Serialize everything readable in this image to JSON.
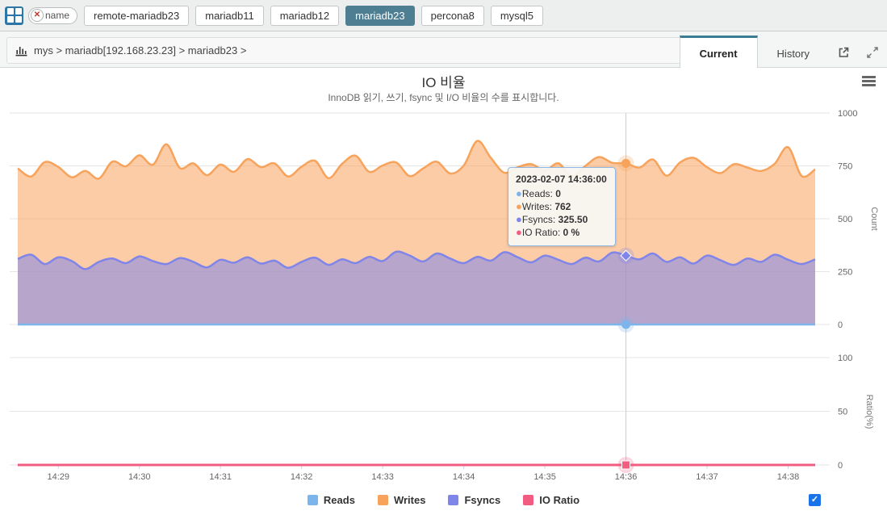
{
  "topbar": {
    "filter_chip": {
      "label": "name",
      "close_glyph": "✕"
    },
    "server_tabs": [
      {
        "label": "remote-mariadb23",
        "active": false
      },
      {
        "label": "mariadb11",
        "active": false
      },
      {
        "label": "mariadb12",
        "active": false
      },
      {
        "label": "mariadb23",
        "active": true
      },
      {
        "label": "percona8",
        "active": false
      },
      {
        "label": "mysql5",
        "active": false
      }
    ],
    "active_tab_color": "#4d7e91"
  },
  "subheader": {
    "breadcrumb": "mys > mariadb[192.168.23.23] > mariadb23 >",
    "view_tabs": [
      {
        "label": "Current",
        "active": true
      },
      {
        "label": "History",
        "active": false
      }
    ],
    "active_tab_accent": "#3b7d92"
  },
  "tooltip": {
    "title": "2023-02-07 14:36:00",
    "rows": [
      {
        "label": "Reads",
        "value": "0",
        "color": "#7cb5ec"
      },
      {
        "label": "Writes",
        "value": "762",
        "color": "#f7a35c"
      },
      {
        "label": "Fsyncs",
        "value": "325.50",
        "color": "#8085e9"
      },
      {
        "label": "IO Ratio",
        "value": "0 %",
        "color": "#f15c80"
      }
    ]
  },
  "legend": {
    "items": [
      {
        "label": "Reads",
        "color": "#7cb5ec"
      },
      {
        "label": "Writes",
        "color": "#f7a35c"
      },
      {
        "label": "Fsyncs",
        "color": "#8085e9"
      },
      {
        "label": "IO Ratio",
        "color": "#f15c80"
      }
    ],
    "checkbox_checked": true,
    "check_glyph": "✓"
  },
  "chart_data": {
    "type": "area",
    "title": "IO 비율",
    "subtitle": "InnoDB 읽기, 쓰기, fsync 및 I/O 비율의 수를 표시합니다.",
    "x_start": "14:28:30",
    "x_step_seconds": 10,
    "x_labels": [
      "14:29",
      "14:30",
      "14:31",
      "14:32",
      "14:33",
      "14:34",
      "14:35",
      "14:36",
      "14:37",
      "14:38"
    ],
    "grid": true,
    "legend_position": "bottom-center",
    "panes": [
      {
        "ylabel": "Count",
        "ylim": [
          0,
          1000
        ],
        "yticks": [
          0,
          250,
          500,
          750,
          1000
        ]
      },
      {
        "ylabel": "Ratio(%)",
        "ylim": [
          0,
          100
        ],
        "yticks": [
          0,
          50,
          100
        ]
      }
    ],
    "crosshair_index": 45,
    "selected_point": {
      "time": "2023-02-07 14:36:00",
      "reads": 0,
      "writes": 762,
      "fsyncs": 325.5,
      "io_ratio_pct": 0
    },
    "series": [
      {
        "name": "Reads",
        "color": "#7cb5ec",
        "pane": 0,
        "marker": "circle",
        "values": [
          0,
          0,
          0,
          0,
          0,
          0,
          0,
          0,
          0,
          0,
          0,
          0,
          0,
          0,
          0,
          0,
          0,
          0,
          0,
          0,
          0,
          0,
          0,
          0,
          0,
          0,
          0,
          0,
          0,
          0,
          0,
          0,
          0,
          0,
          0,
          0,
          0,
          0,
          0,
          0,
          0,
          0,
          0,
          0,
          0,
          0,
          0,
          0,
          0,
          0,
          0,
          0,
          0,
          0,
          0,
          0,
          0,
          0,
          0,
          0
        ]
      },
      {
        "name": "Writes",
        "color": "#f7a35c",
        "pane": 0,
        "marker": "circle",
        "values": [
          738,
          700,
          768,
          745,
          696,
          726,
          690,
          770,
          748,
          800,
          756,
          852,
          740,
          762,
          706,
          756,
          722,
          782,
          744,
          762,
          700,
          746,
          774,
          692,
          760,
          798,
          722,
          752,
          766,
          702,
          738,
          770,
          714,
          752,
          868,
          788,
          718,
          744,
          758,
          728,
          762,
          700,
          750,
          792,
          764,
          762,
          742,
          780,
          704,
          766,
          788,
          744,
          716,
          758,
          742,
          726,
          760,
          838,
          702,
          734
        ]
      },
      {
        "name": "Fsyncs",
        "color": "#8085e9",
        "pane": 0,
        "marker": "diamond",
        "values": [
          310,
          330,
          286,
          318,
          300,
          262,
          296,
          312,
          290,
          322,
          300,
          286,
          314,
          296,
          270,
          306,
          292,
          318,
          288,
          302,
          268,
          296,
          316,
          282,
          308,
          290,
          320,
          300,
          344,
          326,
          298,
          336,
          312,
          290,
          320,
          302,
          342,
          318,
          294,
          326,
          306,
          286,
          316,
          298,
          340,
          325.5,
          308,
          336,
          296,
          318,
          288,
          326,
          304,
          282,
          312,
          296,
          330,
          306,
          286,
          308
        ]
      },
      {
        "name": "IO Ratio",
        "color": "#f15c80",
        "pane": 1,
        "marker": "square",
        "values": [
          0,
          0,
          0,
          0,
          0,
          0,
          0,
          0,
          0,
          0,
          0,
          0,
          0,
          0,
          0,
          0,
          0,
          0,
          0,
          0,
          0,
          0,
          0,
          0,
          0,
          0,
          0,
          0,
          0,
          0,
          0,
          0,
          0,
          0,
          0,
          0,
          0,
          0,
          0,
          0,
          0,
          0,
          0,
          0,
          0,
          0,
          0,
          0,
          0,
          0,
          0,
          0,
          0,
          0,
          0,
          0,
          0,
          0,
          0,
          0
        ]
      }
    ]
  }
}
